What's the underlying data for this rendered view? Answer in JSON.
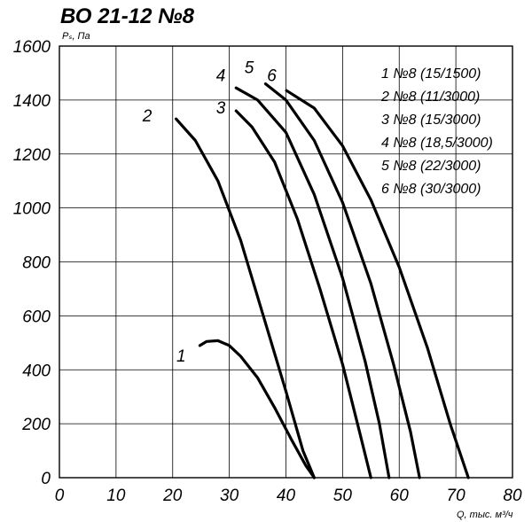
{
  "chart_data": {
    "type": "line",
    "title": "ВО 21-12 №8",
    "ylabel": "Pₛ, Па",
    "xlabel": "Q, тыс. м³/ч",
    "xlim": [
      0,
      80
    ],
    "ylim": [
      0,
      1600
    ],
    "x_ticks": [
      "0",
      "10",
      "20",
      "30",
      "40",
      "50",
      "60",
      "70",
      "80"
    ],
    "y_ticks": [
      "0",
      "200",
      "400",
      "600",
      "800",
      "1000",
      "1200",
      "1400",
      "1600"
    ],
    "grid": true,
    "legend_position": "top-right",
    "legend": [
      "1 №8 (15/1500)",
      "2 №8 (11/3000)",
      "3 №8 (15/3000)",
      "4 №8 (18,5/3000)",
      "5 №8 (22/3000)",
      "6 №8 (30/3000)"
    ],
    "series": [
      {
        "name": "1",
        "label": "1",
        "x": [
          24.8,
          26,
          28,
          30,
          32,
          35,
          38,
          41,
          43.5,
          45
        ],
        "y": [
          490,
          505,
          508,
          490,
          450,
          370,
          260,
          140,
          45,
          0
        ]
      },
      {
        "name": "2",
        "label": "2",
        "x": [
          20.6,
          24,
          28,
          32,
          36,
          40,
          43,
          45
        ],
        "y": [
          1330,
          1250,
          1100,
          880,
          600,
          320,
          100,
          0
        ]
      },
      {
        "name": "3",
        "label": "3",
        "x": [
          31.2,
          34,
          38,
          42,
          46,
          50,
          53,
          55
        ],
        "y": [
          1360,
          1300,
          1170,
          960,
          700,
          420,
          170,
          0
        ]
      },
      {
        "name": "4",
        "label": "4",
        "x": [
          31.2,
          35,
          40,
          45,
          50,
          54,
          56.5,
          58.2
        ],
        "y": [
          1445,
          1400,
          1280,
          1050,
          740,
          430,
          200,
          0
        ]
      },
      {
        "name": "5",
        "label": "5",
        "x": [
          36.4,
          40,
          45,
          50,
          55,
          59,
          62,
          63.6
        ],
        "y": [
          1460,
          1400,
          1250,
          1020,
          720,
          420,
          170,
          0
        ]
      },
      {
        "name": "6",
        "label": "6",
        "x": [
          40.1,
          45,
          50,
          55,
          60,
          65,
          69,
          72.2
        ],
        "y": [
          1435,
          1370,
          1230,
          1030,
          780,
          480,
          200,
          0
        ]
      }
    ],
    "curve_label_positions": [
      {
        "label": "1",
        "x": 21.5,
        "y": 430
      },
      {
        "label": "2",
        "x": 15.5,
        "y": 1320
      },
      {
        "label": "3",
        "x": 28.5,
        "y": 1350
      },
      {
        "label": "4",
        "x": 28.5,
        "y": 1470
      },
      {
        "label": "5",
        "x": 33.5,
        "y": 1500
      },
      {
        "label": "6",
        "x": 37.5,
        "y": 1470
      }
    ]
  }
}
